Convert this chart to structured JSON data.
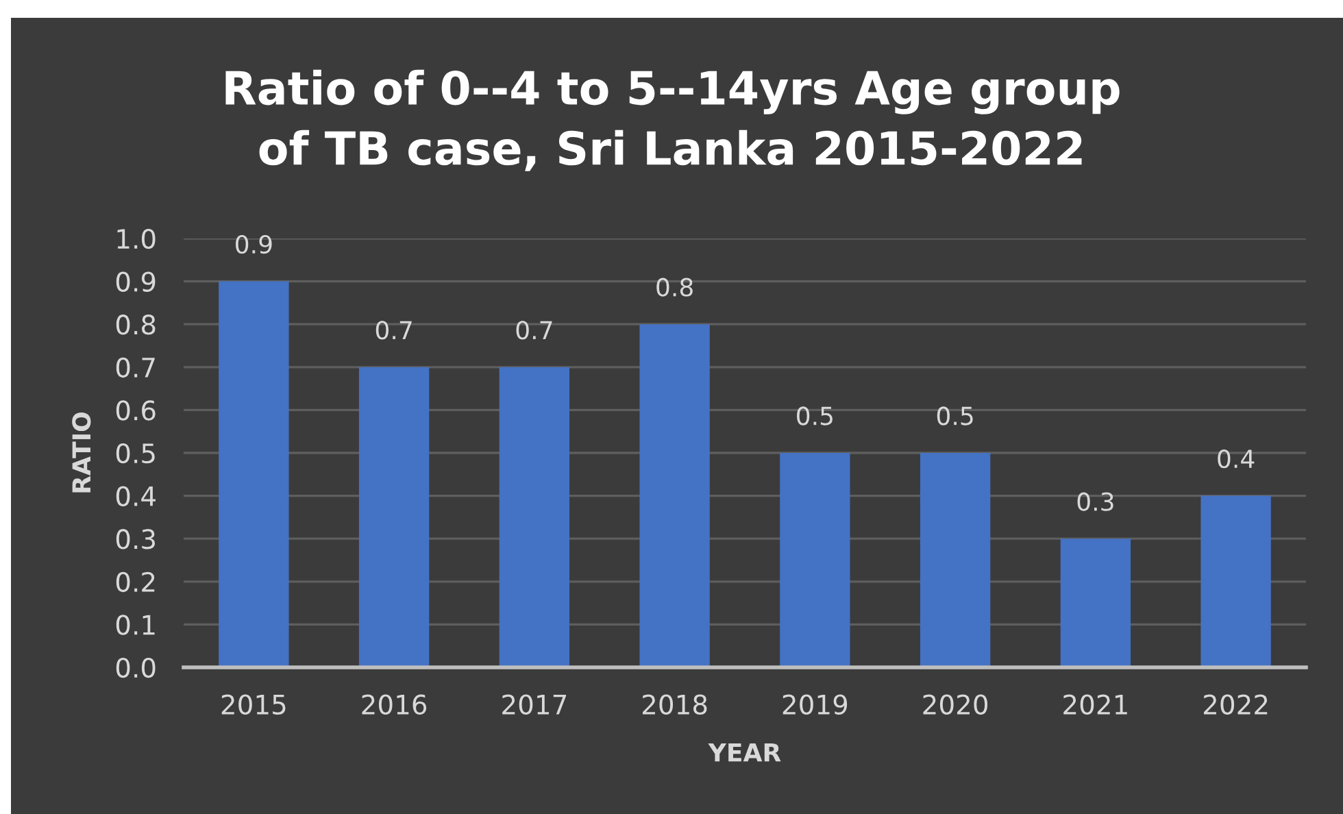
{
  "chart_data": {
    "type": "bar",
    "title": "Ratio of 0--4 to 5--14yrs Age group\nof TB case, Sri Lanka 2015-2022",
    "xlabel": "YEAR",
    "ylabel": "RATIO",
    "categories": [
      "2015",
      "2016",
      "2017",
      "2018",
      "2019",
      "2020",
      "2021",
      "2022"
    ],
    "values": [
      0.9,
      0.7,
      0.7,
      0.8,
      0.5,
      0.5,
      0.3,
      0.4
    ],
    "color": "#4472c4",
    "ylim": [
      0,
      1.0
    ],
    "yticks": [
      {
        "value": 0,
        "label": "0.0"
      },
      0.1,
      0.2,
      0.3,
      0.4,
      0.5,
      0.6,
      0.7,
      0.8,
      0.9,
      {
        "value": 1,
        "label": "1.0"
      }
    ],
    "grid": "y",
    "data_labels": true
  }
}
